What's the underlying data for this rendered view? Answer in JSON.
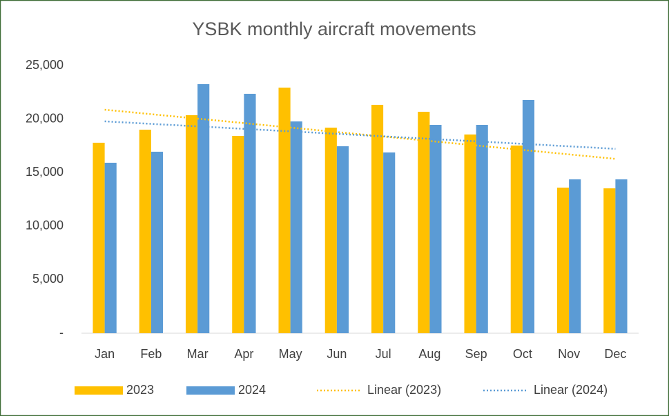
{
  "chart_data": {
    "type": "bar",
    "title": "YSBK monthly aircraft movements",
    "categories": [
      "Jan",
      "Feb",
      "Mar",
      "Apr",
      "May",
      "Jun",
      "Jul",
      "Aug",
      "Sep",
      "Oct",
      "Nov",
      "Dec"
    ],
    "series": [
      {
        "name": "2023",
        "color": "#ffc000",
        "values": [
          17790,
          19010,
          20360,
          18430,
          22940,
          19200,
          21330,
          20680,
          18560,
          17530,
          13600,
          13530
        ],
        "trendline": {
          "name": "Linear (2023)",
          "type": "linear"
        }
      },
      {
        "name": "2024",
        "color": "#5b9bd5",
        "values": [
          15920,
          16950,
          23260,
          22360,
          19780,
          17460,
          16880,
          19460,
          19460,
          21780,
          14370,
          14370
        ],
        "trendline": {
          "name": "Linear (2024)",
          "type": "linear"
        }
      }
    ],
    "ylim": [
      0,
      25000
    ],
    "yticks": [
      {
        "value": 0,
        "label": "-"
      },
      {
        "value": 5000,
        "label": "5,000"
      },
      {
        "value": 10000,
        "label": "10,000"
      },
      {
        "value": 15000,
        "label": "15,000"
      },
      {
        "value": 20000,
        "label": "20,000"
      },
      {
        "value": 25000,
        "label": "25,000"
      }
    ],
    "grid": false,
    "legend": "bottom"
  }
}
